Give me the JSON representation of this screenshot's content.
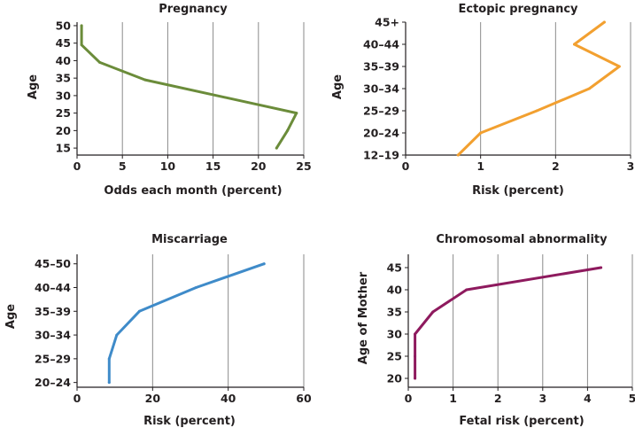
{
  "chart_data": [
    {
      "type": "line",
      "title": "Pregnancy",
      "xlabel": "Odds each month (percent)",
      "ylabel": "Age",
      "xlim": [
        0,
        25
      ],
      "ylim": [
        13,
        51
      ],
      "x_ticks": [
        "0",
        "5",
        "10",
        "15",
        "20",
        "25"
      ],
      "x_tick_values": [
        0,
        5,
        10,
        15,
        20,
        25
      ],
      "y_ticks": [
        "15",
        "20",
        "25",
        "30",
        "35",
        "40",
        "45",
        "50"
      ],
      "y_tick_values": [
        15,
        20,
        25,
        30,
        35,
        40,
        45,
        50
      ],
      "grid": "vertical",
      "color": "#6b8c3a",
      "points": [
        [
          0.5,
          50
        ],
        [
          0.5,
          44.5
        ],
        [
          2.5,
          39.5
        ],
        [
          7.5,
          34.5
        ],
        [
          24.2,
          25
        ],
        [
          23.2,
          20
        ],
        [
          22,
          15
        ]
      ]
    },
    {
      "type": "line",
      "title": "Ectopic pregnancy",
      "xlabel": "Risk (percent)",
      "ylabel": "Age",
      "xlim": [
        0,
        3
      ],
      "ylim": [
        0,
        6
      ],
      "x_ticks": [
        "0",
        "1",
        "2",
        "3"
      ],
      "x_tick_values": [
        0,
        1,
        2,
        3
      ],
      "y_ticks": [
        "12–19",
        "20–24",
        "25–29",
        "30–34",
        "35–39",
        "40–44",
        "45+"
      ],
      "y_tick_values": [
        0,
        1,
        2,
        3,
        4,
        5,
        6
      ],
      "grid": "vertical",
      "color": "#f2a030",
      "points": [
        [
          0.7,
          0
        ],
        [
          1.0,
          1
        ],
        [
          1.75,
          2
        ],
        [
          2.45,
          3
        ],
        [
          2.85,
          4
        ],
        [
          2.25,
          5
        ],
        [
          2.65,
          6
        ]
      ]
    },
    {
      "type": "line",
      "title": "Miscarriage",
      "xlabel": "Risk (percent)",
      "ylabel": "Age",
      "xlim": [
        0,
        60
      ],
      "ylim": [
        -0.2,
        5.4
      ],
      "x_ticks": [
        "0",
        "20",
        "40",
        "60"
      ],
      "x_tick_values": [
        0,
        20,
        40,
        60
      ],
      "y_ticks": [
        "20–24",
        "25–29",
        "30–34",
        "35–39",
        "40–44",
        "45–50"
      ],
      "y_tick_values": [
        0,
        1,
        2,
        3,
        4,
        5
      ],
      "grid": "vertical",
      "color": "#3f8bc9",
      "points": [
        [
          8.5,
          0
        ],
        [
          8.5,
          1
        ],
        [
          10.5,
          2
        ],
        [
          16.5,
          3
        ],
        [
          31.5,
          4
        ],
        [
          49.5,
          5
        ]
      ]
    },
    {
      "type": "line",
      "title": "Chromosomal abnormality",
      "xlabel": "Fetal risk (percent)",
      "ylabel": "Age of Mother",
      "xlim": [
        0,
        5
      ],
      "ylim": [
        18,
        48
      ],
      "x_ticks": [
        "0",
        "1",
        "2",
        "3",
        "4",
        "5"
      ],
      "x_tick_values": [
        0,
        1,
        2,
        3,
        4,
        5
      ],
      "y_ticks": [
        "20",
        "25",
        "30",
        "35",
        "40",
        "45"
      ],
      "y_tick_values": [
        20,
        25,
        30,
        35,
        40,
        45
      ],
      "grid": "vertical",
      "color": "#8e1a5e",
      "points": [
        [
          0.15,
          20
        ],
        [
          0.15,
          25
        ],
        [
          0.15,
          30
        ],
        [
          0.55,
          35
        ],
        [
          1.3,
          40
        ],
        [
          4.3,
          45
        ]
      ]
    }
  ]
}
